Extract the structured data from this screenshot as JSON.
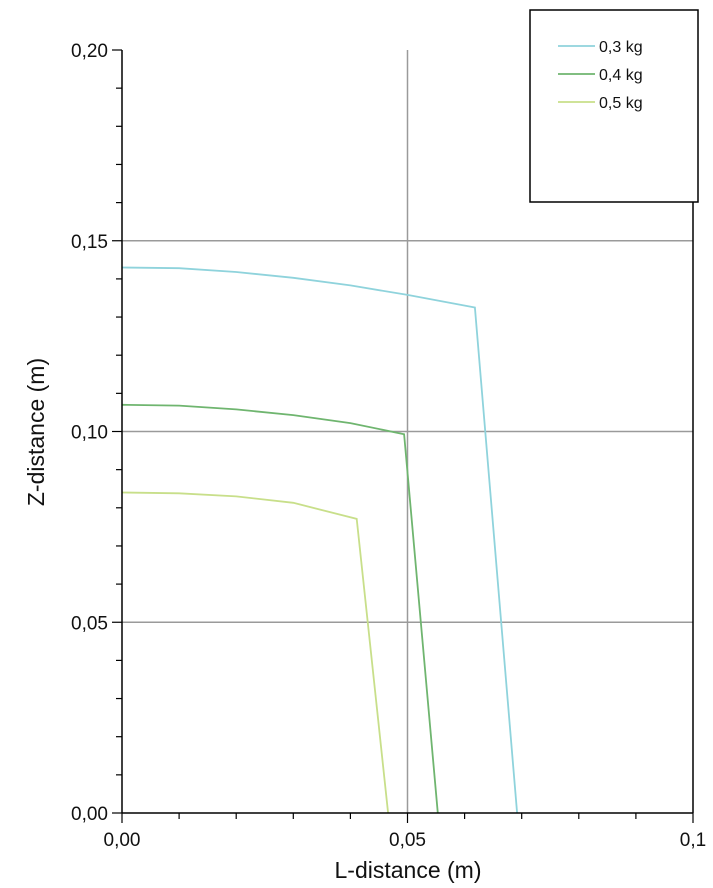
{
  "chart_data": {
    "type": "line",
    "xlabel": "L-distance (m)",
    "ylabel": "Z-distance (m)",
    "xlim": [
      0,
      0.1
    ],
    "ylim": [
      0,
      0.2
    ],
    "grid": true,
    "legend_position": "top-right",
    "x_ticks": [
      {
        "value": 0,
        "label": "0,00"
      },
      {
        "value": 0.05,
        "label": "0,05"
      },
      {
        "value": 0.1,
        "label": "0,1"
      }
    ],
    "y_ticks": [
      {
        "value": 0,
        "label": "0,00"
      },
      {
        "value": 0.05,
        "label": "0,05"
      },
      {
        "value": 0.1,
        "label": "0,10"
      },
      {
        "value": 0.15,
        "label": "0,15"
      },
      {
        "value": 0.2,
        "label": "0,20"
      }
    ],
    "series": [
      {
        "name": "0,3 kg",
        "color": "#8fd3dc",
        "points": [
          [
            0.0,
            0.143
          ],
          [
            0.01,
            0.1428
          ],
          [
            0.02,
            0.1418
          ],
          [
            0.03,
            0.1403
          ],
          [
            0.04,
            0.1383
          ],
          [
            0.05,
            0.1358
          ],
          [
            0.0618,
            0.1325
          ],
          [
            0.0692,
            0.0
          ]
        ]
      },
      {
        "name": "0,4 kg",
        "color": "#6fb56f",
        "points": [
          [
            0.0,
            0.107
          ],
          [
            0.01,
            0.1068
          ],
          [
            0.02,
            0.1058
          ],
          [
            0.03,
            0.1043
          ],
          [
            0.04,
            0.1022
          ],
          [
            0.0494,
            0.0993
          ],
          [
            0.0553,
            0.0
          ]
        ]
      },
      {
        "name": "0,5 kg",
        "color": "#c8df8a",
        "points": [
          [
            0.0,
            0.084
          ],
          [
            0.01,
            0.0838
          ],
          [
            0.02,
            0.083
          ],
          [
            0.03,
            0.0813
          ],
          [
            0.0411,
            0.0771
          ],
          [
            0.0466,
            0.0
          ]
        ]
      }
    ]
  }
}
